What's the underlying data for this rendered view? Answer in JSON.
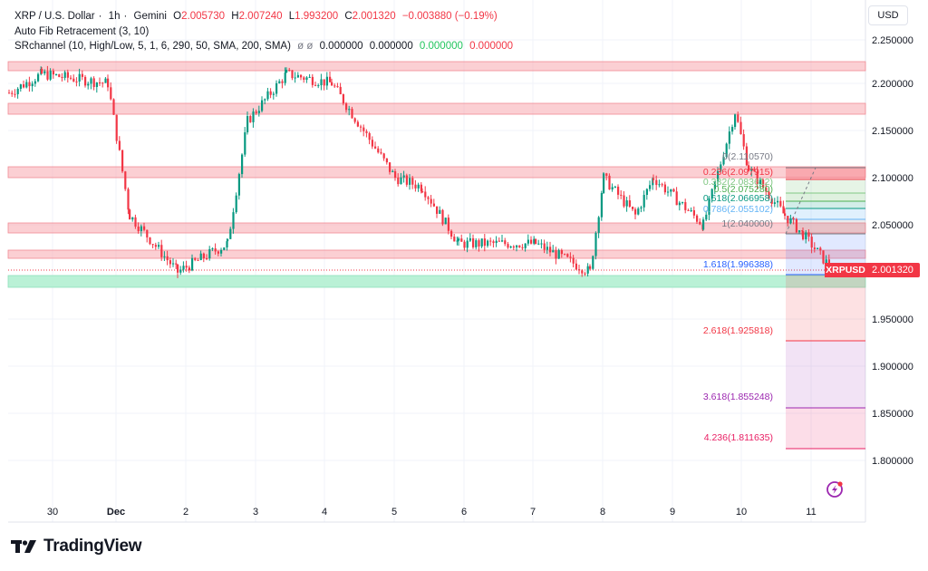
{
  "header": {
    "symbol": "XRP / U.S. Dollar",
    "interval": "1h",
    "exchange": "Gemini",
    "open_label": "O",
    "open": "2.005730",
    "high_label": "H",
    "high": "2.007240",
    "low_label": "L",
    "low": "1.993200",
    "close_label": "C",
    "close": "2.001320",
    "change": "−0.003880 (−0.19%)"
  },
  "indicators": [
    {
      "name": "Auto Fib Retracement (3, 10)"
    },
    {
      "name": "SRchannel (10, High/Low, 5, 1, 6, 290, 50, SMA, 200, SMA)",
      "symbols": "ø  ø",
      "values": [
        "0.000000",
        "0.000000",
        "0.000000",
        "0.000000"
      ]
    }
  ],
  "price_axis": {
    "currency": "USD",
    "ticks": [
      "2.250000",
      "2.200000",
      "2.150000",
      "2.100000",
      "2.050000",
      "1.950000",
      "1.900000",
      "1.850000",
      "1.800000"
    ],
    "last_price": "2.001320",
    "symbol_tag": "XRPUSD"
  },
  "time_axis": {
    "ticks": [
      "30",
      "Dec",
      "2",
      "3",
      "4",
      "5",
      "6",
      "7",
      "8",
      "9",
      "10",
      "11"
    ]
  },
  "fib_levels": [
    {
      "label": "0(2.110570)",
      "color": "#787b86"
    },
    {
      "label": "0.236(2.097915)",
      "color": "#f23645"
    },
    {
      "label": "0.382(2.083612)",
      "color": "#81c784"
    },
    {
      "label": "0.5(2.075280)",
      "color": "#4caf50"
    },
    {
      "label": "0.618(2.066958)",
      "color": "#089981"
    },
    {
      "label": "0.786(2.055102)",
      "color": "#64b5f6"
    },
    {
      "label": "1(2.040000)",
      "color": "#787b86"
    },
    {
      "label": "1.618(1.996388)",
      "color": "#2962ff"
    },
    {
      "label": "2.618(1.925818)",
      "color": "#f23645"
    },
    {
      "label": "3.618(1.855248)",
      "color": "#9c27b0"
    },
    {
      "label": "4.236(1.811635)",
      "color": "#e91e63"
    }
  ],
  "brand": {
    "name": "TradingView"
  },
  "colors": {
    "up": "#089981",
    "down": "#f23645",
    "sr_band": "#f7a8ae",
    "support_band": "#b2f0d2"
  },
  "chart_data": {
    "type": "candlestick",
    "title": "XRP / U.S. Dollar · 1h · Gemini",
    "xlabel": "",
    "ylabel": "USD",
    "ylim": [
      1.75,
      2.28
    ],
    "x_ticks": [
      "30",
      "Dec",
      "2",
      "3",
      "4",
      "5",
      "6",
      "7",
      "8",
      "9",
      "10",
      "11"
    ],
    "y_ticks": [
      2.25,
      2.2,
      2.15,
      2.1,
      2.05,
      1.95,
      1.9,
      1.85,
      1.8
    ],
    "last": {
      "open": 2.00573,
      "high": 2.00724,
      "low": 1.9932,
      "close": 2.00132,
      "change": -0.00388,
      "change_pct": -0.19
    },
    "sr_channels": [
      [
        2.213,
        2.222
      ],
      [
        2.168,
        2.18
      ],
      [
        2.099,
        2.112
      ],
      [
        2.04,
        2.05
      ],
      [
        2.012,
        2.02
      ]
    ],
    "support_channel": [
      1.983,
      1.994
    ],
    "fib_retracement": {
      "0": 2.11057,
      "0.236": 2.097915,
      "0.382": 2.083612,
      "0.5": 2.07528,
      "0.618": 2.066958,
      "0.786": 2.055102,
      "1": 2.04,
      "1.618": 1.996388,
      "2.618": 1.925818,
      "3.618": 1.855248,
      "4.236": 1.811635
    },
    "approx_path": [
      {
        "x": "29 Nov",
        "price": 2.19
      },
      {
        "x": "30 Nov",
        "price": 2.21
      },
      {
        "x": "1 Dec 12h",
        "price": 2.2
      },
      {
        "x": "1 Dec 18h",
        "price": 2.06
      },
      {
        "x": "2 Dec",
        "price": 2.0
      },
      {
        "x": "2 Dec 18h",
        "price": 2.03
      },
      {
        "x": "3 Dec",
        "price": 2.16
      },
      {
        "x": "3 Dec 12h",
        "price": 2.21
      },
      {
        "x": "4 Dec",
        "price": 2.2
      },
      {
        "x": "5 Dec",
        "price": 2.1
      },
      {
        "x": "5 Dec 12h",
        "price": 2.09
      },
      {
        "x": "6 Dec",
        "price": 2.03
      },
      {
        "x": "7 Dec",
        "price": 2.03
      },
      {
        "x": "7 Dec 18h",
        "price": 2.0
      },
      {
        "x": "8 Dec",
        "price": 2.1
      },
      {
        "x": "8 Dec 12h",
        "price": 2.06
      },
      {
        "x": "8 Dec 18h",
        "price": 2.1
      },
      {
        "x": "9 Dec 12h",
        "price": 2.05
      },
      {
        "x": "9 Dec 20h",
        "price": 2.17
      },
      {
        "x": "10 Dec",
        "price": 2.11
      },
      {
        "x": "10 Dec 18h",
        "price": 2.06
      },
      {
        "x": "11 Dec",
        "price": 2.04
      },
      {
        "x": "11 Dec 6h",
        "price": 2.0013
      }
    ]
  }
}
